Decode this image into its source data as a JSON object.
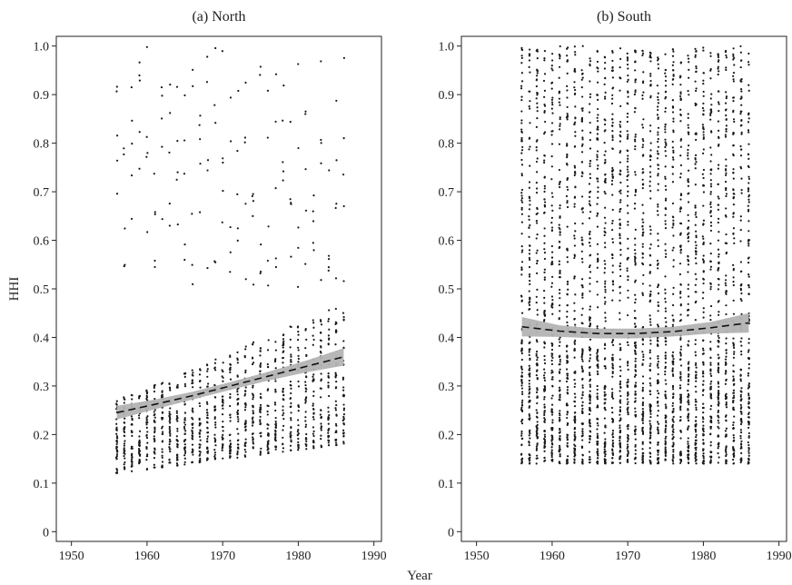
{
  "figure": {
    "xlabel": "Year",
    "ylabel": "HHI"
  },
  "chart_data": [
    {
      "type": "scatter",
      "title": "(a) North",
      "xlim": [
        1948,
        1991
      ],
      "ylim": [
        -0.02,
        1.02
      ],
      "xticks": [
        1950,
        1960,
        1970,
        1980,
        1990
      ],
      "yticks": [
        0,
        0.1,
        0.2,
        0.3,
        0.4,
        0.5,
        0.6,
        0.7,
        0.8,
        0.9,
        1.0
      ],
      "grid": false,
      "points_per_year": {
        "years": [
          1956,
          1986
        ],
        "dense_range": [
          0.12,
          0.27
        ],
        "dense_max_end": 0.47,
        "dense_min_end": 0.18,
        "scattered_range": [
          0.5,
          1.0
        ]
      },
      "trend": {
        "style": "dashed",
        "x": [
          1956,
          1961,
          1966,
          1971,
          1976,
          1981,
          1986
        ],
        "y": [
          0.245,
          0.262,
          0.28,
          0.3,
          0.32,
          0.34,
          0.36
        ],
        "ci_halfwidth": [
          0.014,
          0.01,
          0.008,
          0.008,
          0.009,
          0.012,
          0.018
        ],
        "ci_color": "#b3b3b3"
      }
    },
    {
      "type": "scatter",
      "title": "(b) South",
      "xlim": [
        1948,
        1991
      ],
      "ylim": [
        -0.02,
        1.02
      ],
      "xticks": [
        1950,
        1960,
        1970,
        1980,
        1990
      ],
      "yticks": [
        0,
        0.1,
        0.2,
        0.3,
        0.4,
        0.5,
        0.6,
        0.7,
        0.8,
        0.9,
        1.0
      ],
      "grid": false,
      "points_per_year": {
        "years": [
          1956,
          1986
        ],
        "dense_range": [
          0.14,
          0.4
        ],
        "scattered_range": [
          0.4,
          1.0
        ]
      },
      "trend": {
        "style": "dashed",
        "x": [
          1956,
          1961,
          1966,
          1971,
          1976,
          1981,
          1986
        ],
        "y": [
          0.422,
          0.413,
          0.408,
          0.408,
          0.412,
          0.42,
          0.43
        ],
        "ci_halfwidth": [
          0.02,
          0.012,
          0.01,
          0.01,
          0.01,
          0.012,
          0.02
        ],
        "ci_color": "#b3b3b3"
      }
    }
  ],
  "colors": {
    "points": "#1a1a1a",
    "trend": "#111111",
    "axis": "#222222"
  }
}
